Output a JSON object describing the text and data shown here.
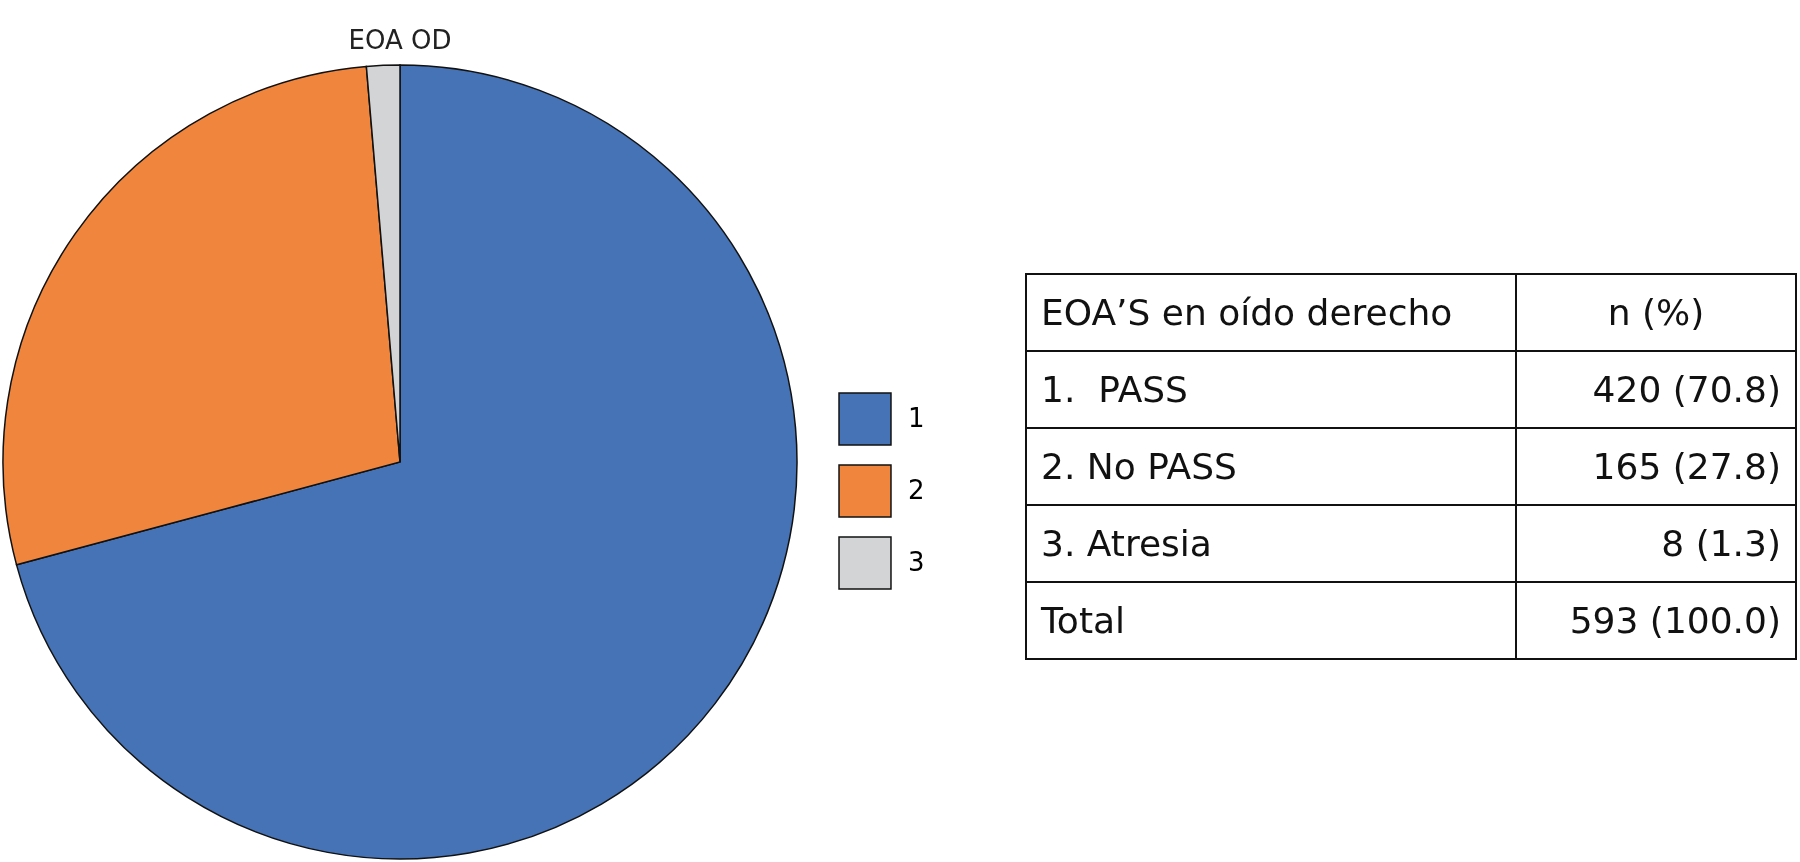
{
  "chart_data": {
    "type": "pie",
    "title": "EOA OD",
    "categories": [
      "1",
      "2",
      "3"
    ],
    "values": [
      70.83,
      27.82,
      1.35
    ],
    "colors": [
      "#4573b6",
      "#f0853e",
      "#d3d4d6"
    ],
    "legend": "right",
    "annotations": [
      "EOA’S en oído derecho",
      "n (%)",
      "1.  PASS",
      "420 (70.8)",
      "2. No PASS",
      "165 (27.8)",
      "3. Atresia",
      "8 (1.3)",
      "Total",
      "593 (100.0)"
    ]
  }
}
